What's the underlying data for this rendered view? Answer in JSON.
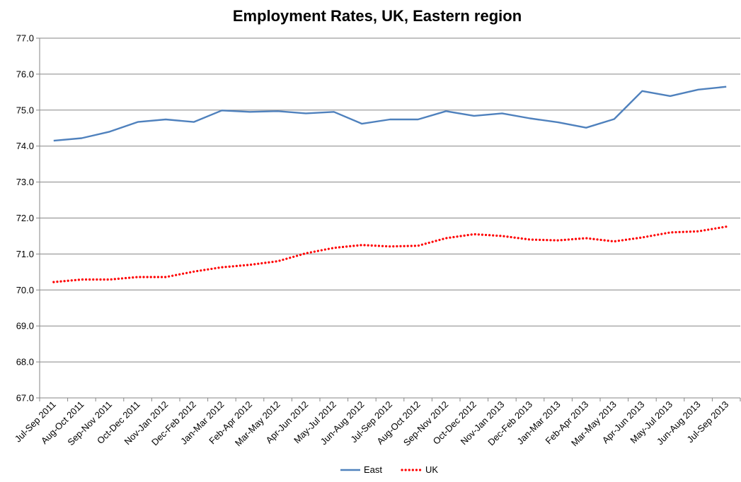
{
  "chart_data": {
    "type": "line",
    "title": "Employment Rates, UK, Eastern region",
    "xlabel": "",
    "ylabel": "",
    "ylim": [
      67.0,
      77.0
    ],
    "yticks": [
      "67.0",
      "68.0",
      "69.0",
      "70.0",
      "71.0",
      "72.0",
      "73.0",
      "74.0",
      "75.0",
      "76.0",
      "77.0"
    ],
    "grid": true,
    "legend_position": "bottom",
    "categories": [
      "Jul-Sep 2011",
      "Aug-Oct 2011",
      "Sep-Nov 2011",
      "Oct-Dec 2011",
      "Nov-Jan 2012",
      "Dec-Feb 2012",
      "Jan-Mar 2012",
      "Feb-Apr 2012",
      "Mar-May 2012",
      "Apr-Jun 2012",
      "May-Jul 2012",
      "Jun-Aug 2012",
      "Jul-Sep 2012",
      "Aug-Oct 2012",
      "Sep-Nov 2012",
      "Oct-Dec 2012",
      "Nov-Jan 2013",
      "Dec-Feb 2013",
      "Jan-Mar 2013",
      "Feb-Apr 2013",
      "Mar-May 2013",
      "Apr-Jun 2013",
      "May-Jul 2013",
      "Jun-Aug 2013",
      "Jul-Sep 2013"
    ],
    "series": [
      {
        "name": "East",
        "color": "#4F81BD",
        "style": "solid",
        "values": [
          74.15,
          74.22,
          74.4,
          74.67,
          74.74,
          74.67,
          74.99,
          74.95,
          74.97,
          74.91,
          74.95,
          74.62,
          74.74,
          74.74,
          74.97,
          74.84,
          74.91,
          74.77,
          74.66,
          74.51,
          74.75,
          75.53,
          75.39,
          75.57,
          75.65
        ]
      },
      {
        "name": "UK",
        "color": "#FF0000",
        "style": "dotted",
        "values": [
          70.22,
          70.29,
          70.29,
          70.36,
          70.36,
          70.51,
          70.63,
          70.7,
          70.8,
          71.02,
          71.17,
          71.25,
          71.21,
          71.23,
          71.44,
          71.55,
          71.5,
          71.4,
          71.38,
          71.44,
          71.35,
          71.46,
          71.6,
          71.63,
          71.76
        ]
      }
    ]
  }
}
